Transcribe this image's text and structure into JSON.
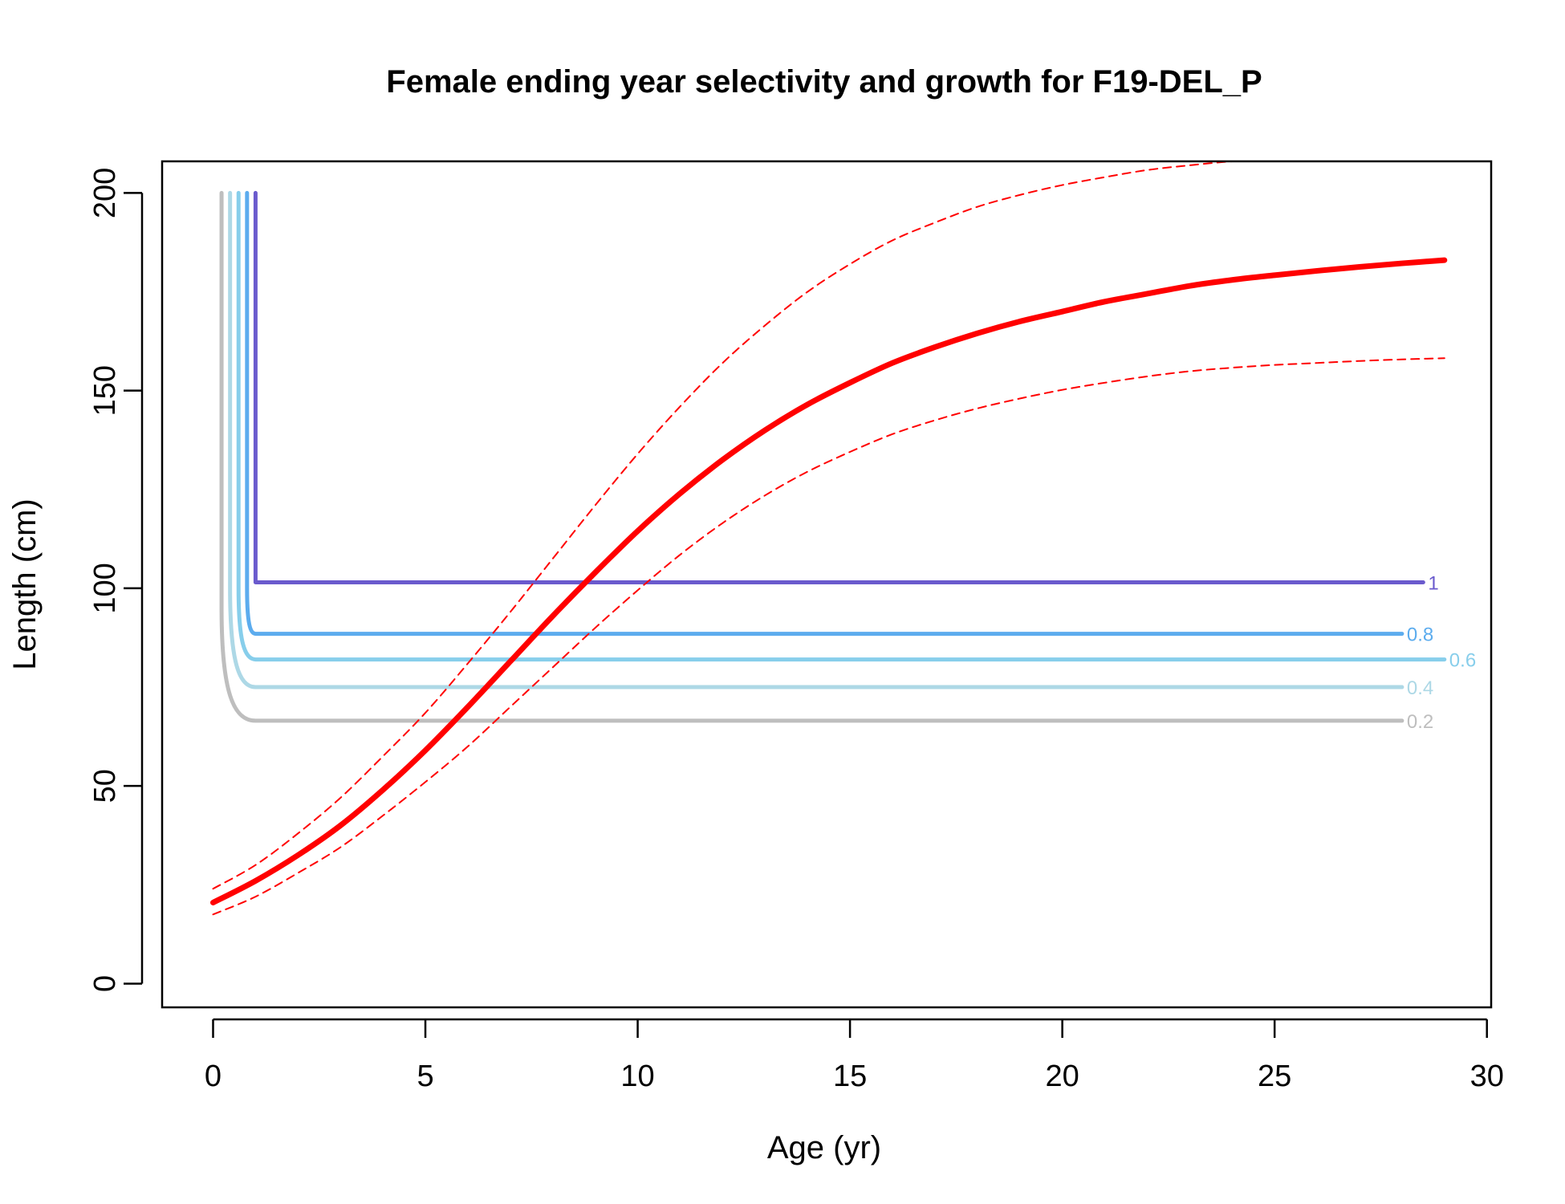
{
  "chart_data": {
    "type": "line",
    "title": "Female ending year selectivity and growth for F19-DEL_P",
    "xlabel": "Age (yr)",
    "ylabel": "Length (cm)",
    "xlim": [
      -1.2,
      30.1
    ],
    "ylim": [
      -6,
      208
    ],
    "x_ticks": [
      "0",
      "5",
      "10",
      "15",
      "20",
      "25",
      "30"
    ],
    "y_ticks": [
      "0",
      "50",
      "100",
      "150",
      "200"
    ],
    "grid": false,
    "legend": "none",
    "growth": {
      "color": "#ff0000",
      "mean": {
        "x": [
          0,
          1,
          2,
          3,
          4,
          5,
          6,
          7,
          8,
          9,
          10,
          11,
          12,
          13,
          14,
          15,
          16,
          17,
          18,
          19,
          20,
          21,
          22,
          23,
          24,
          25,
          26,
          27,
          28,
          29
        ],
        "y": [
          20.5,
          26,
          32.5,
          40,
          49,
          59,
          70,
          81.5,
          93,
          104,
          114.5,
          124,
          132.5,
          140,
          146.5,
          152,
          157,
          161,
          164.5,
          167.5,
          170,
          172.5,
          174.5,
          176.5,
          178,
          179.2,
          180.3,
          181.3,
          182.2,
          183
        ]
      },
      "upper": {
        "x": [
          0,
          1,
          2,
          3,
          4,
          5,
          6,
          7,
          8,
          9,
          10,
          11,
          12,
          13,
          14,
          15,
          16,
          17,
          18,
          19,
          20,
          21,
          22,
          23,
          24,
          25,
          26,
          27,
          28,
          29
        ],
        "y": [
          24,
          30,
          38,
          47,
          57.5,
          68.5,
          81,
          94,
          107.5,
          121,
          134,
          146,
          157,
          166.5,
          175,
          182,
          188,
          192.5,
          196.5,
          199.5,
          202,
          204,
          205.8,
          207,
          208,
          208.5,
          209,
          209.3,
          209.6,
          210
        ]
      },
      "lower": {
        "x": [
          0,
          1,
          2,
          3,
          4,
          5,
          6,
          7,
          8,
          9,
          10,
          11,
          12,
          13,
          14,
          15,
          16,
          17,
          18,
          19,
          20,
          21,
          22,
          23,
          24,
          25,
          26,
          27,
          28,
          29
        ],
        "y": [
          17.5,
          22,
          28,
          34.5,
          42.5,
          51,
          60,
          70,
          80,
          90,
          99.5,
          108.5,
          116.5,
          123.5,
          129.5,
          134.5,
          139,
          142.5,
          145.5,
          148,
          150.2,
          152,
          153.6,
          154.9,
          155.8,
          156.5,
          157,
          157.5,
          157.9,
          158.2
        ]
      }
    },
    "selectivity_contours": [
      {
        "label": "0.2",
        "color": "#bebebe",
        "vertical_x": 0.2,
        "knee_x": 1.0,
        "level_y": 66.5,
        "end_x": 28.0,
        "knee_start_y": 95
      },
      {
        "label": "0.4",
        "color": "#add8e6",
        "vertical_x": 0.4,
        "knee_x": 1.0,
        "level_y": 75,
        "end_x": 28.0,
        "knee_start_y": 100
      },
      {
        "label": "0.6",
        "color": "#87ceeb",
        "vertical_x": 0.6,
        "knee_x": 1.0,
        "level_y": 82,
        "end_x": 29.0,
        "knee_start_y": 100
      },
      {
        "label": "0.8",
        "color": "#5cacee",
        "vertical_x": 0.8,
        "knee_x": 1.0,
        "level_y": 88.5,
        "end_x": 28.0,
        "knee_start_y": 100
      },
      {
        "label": "1",
        "color": "#6a5acd",
        "vertical_x": 1.0,
        "knee_x": 1.0,
        "level_y": 101.5,
        "end_x": 28.5,
        "knee_start_y": 200
      }
    ],
    "contour_top_y": 200
  }
}
